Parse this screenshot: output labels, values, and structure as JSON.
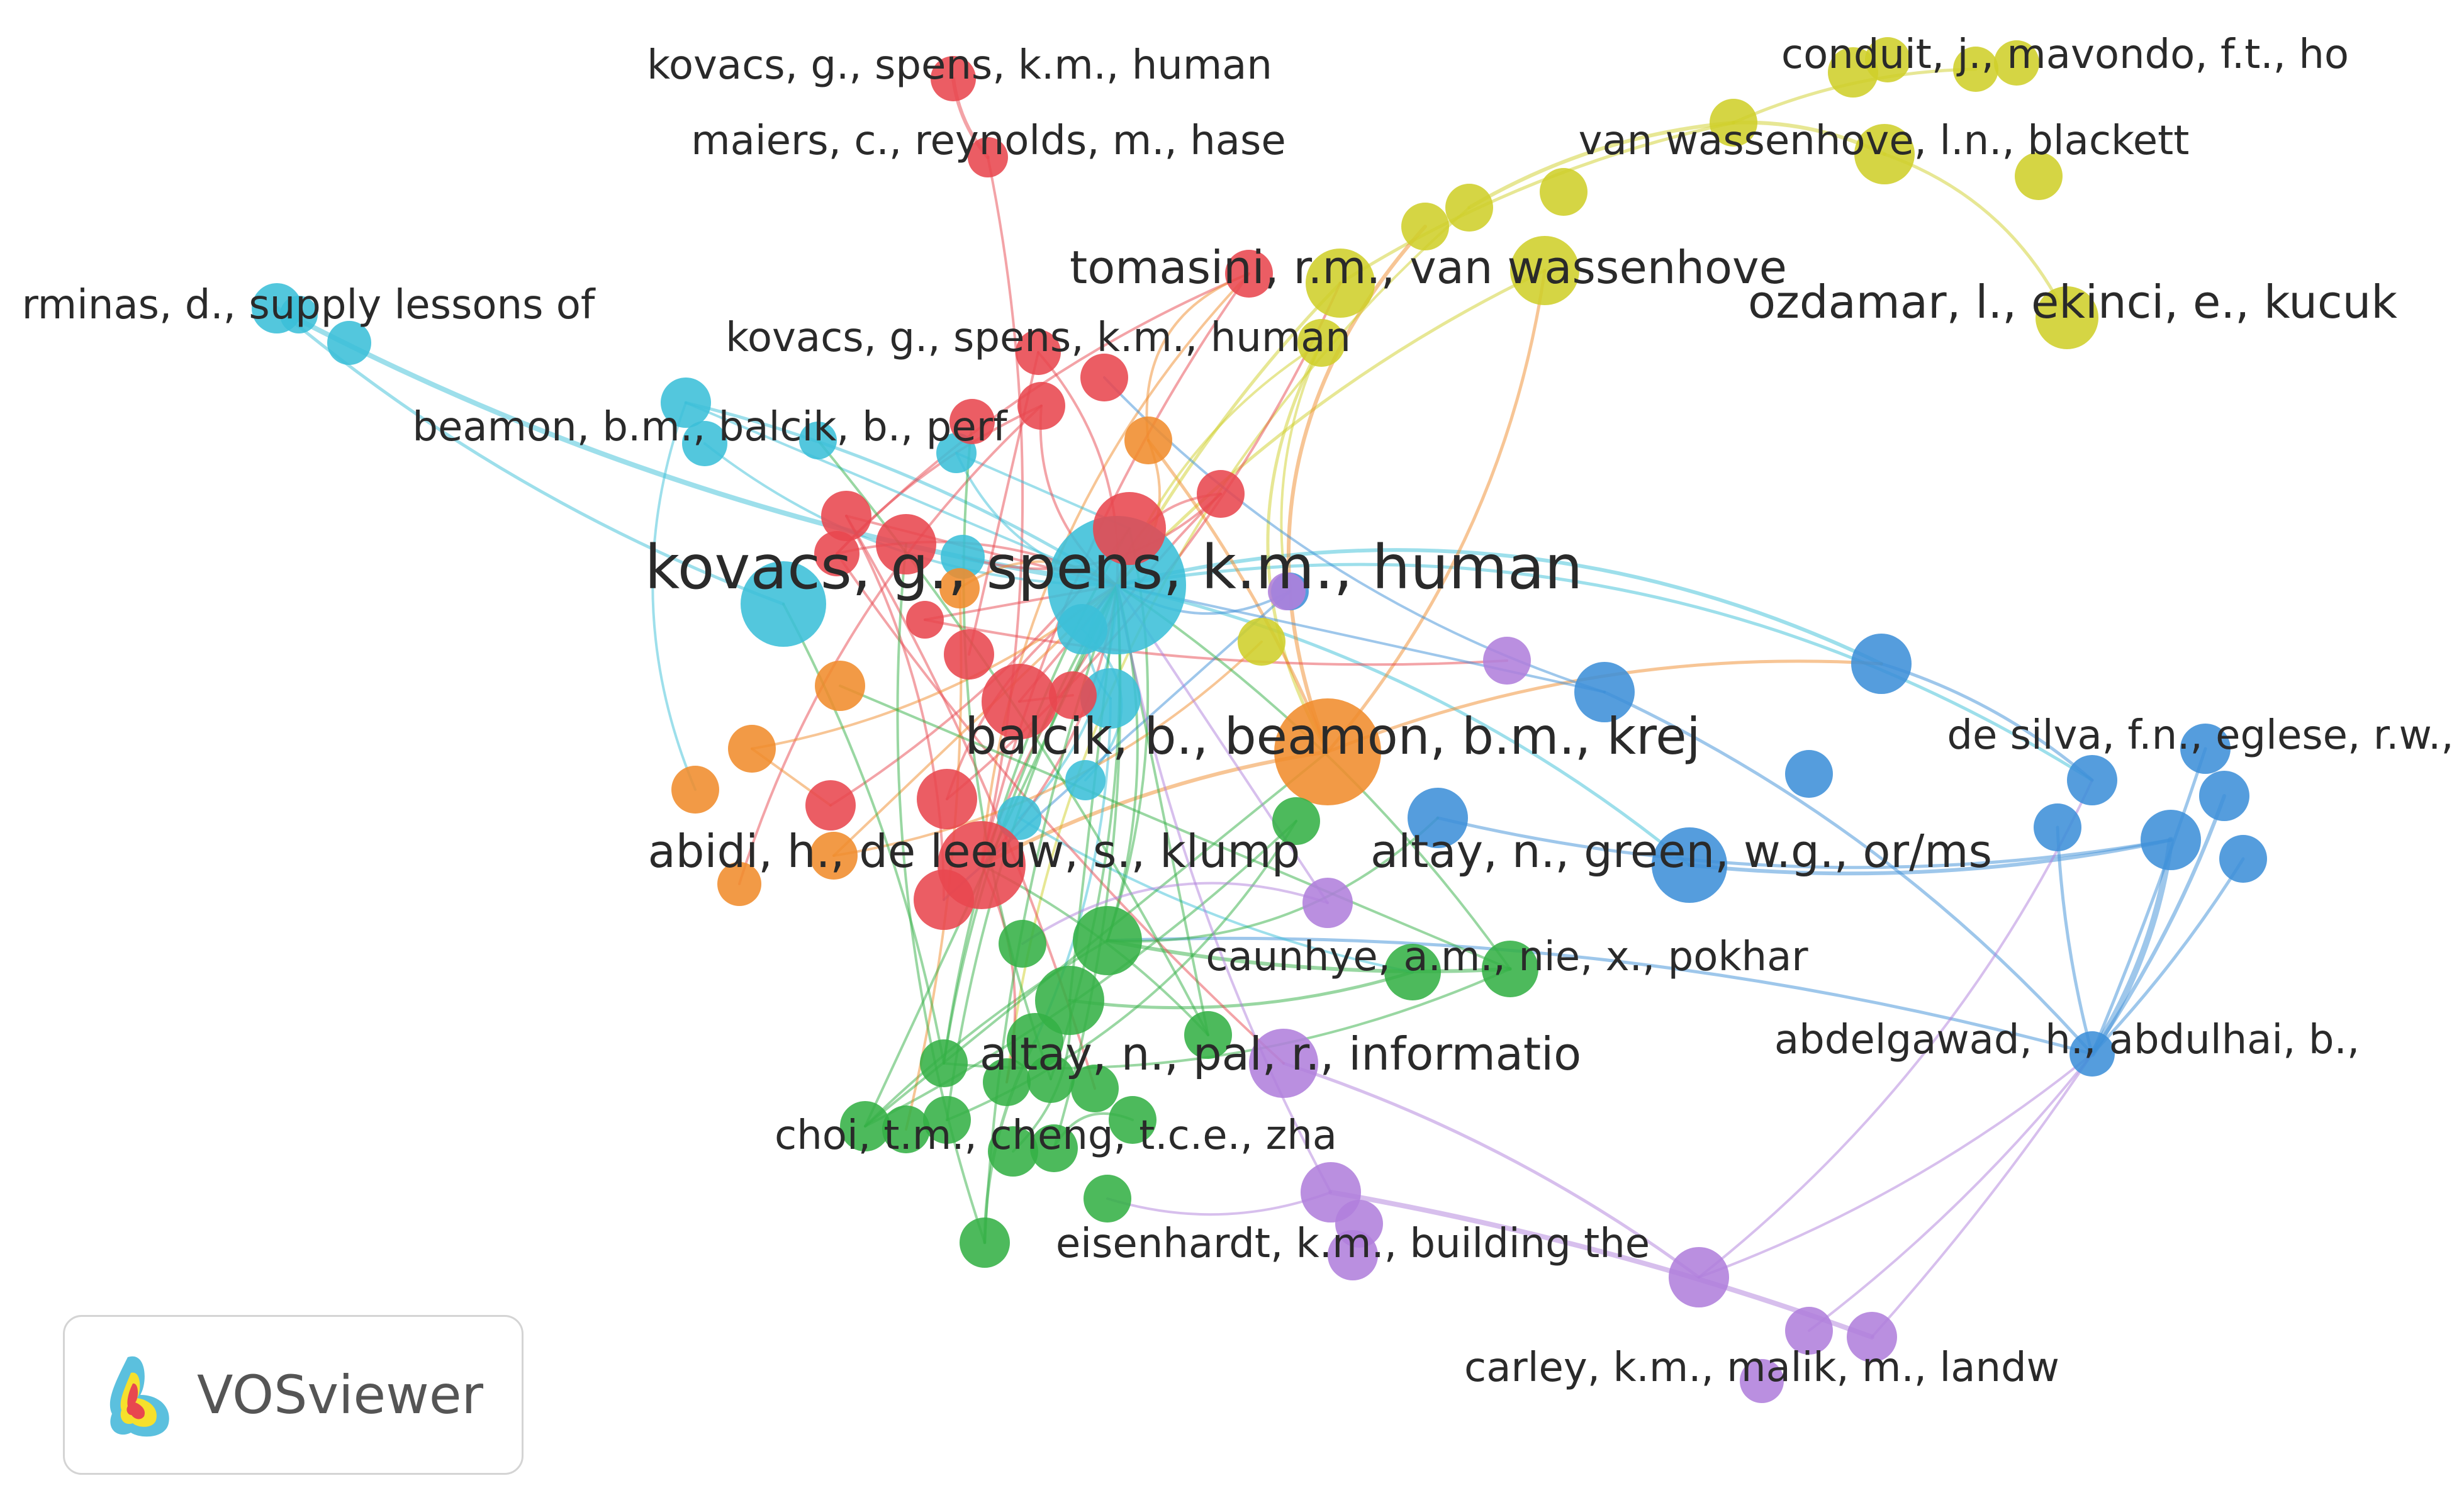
{
  "legend": {
    "app_name": "VOSviewer",
    "icon": "vosviewer-logo-icon"
  },
  "colors": {
    "red": "#e8474f",
    "cyan": "#3bbfd8",
    "yellow": "#cfcf2a",
    "orange": "#f08c2c",
    "blue": "#3d8fd8",
    "green": "#34b045",
    "purple": "#b07fdc"
  },
  "clusters": [
    {
      "id": "red",
      "color": "#e8474f"
    },
    {
      "id": "cyan",
      "color": "#3bbfd8"
    },
    {
      "id": "yellow",
      "color": "#cfcf2a"
    },
    {
      "id": "orange",
      "color": "#f08c2c"
    },
    {
      "id": "blue",
      "color": "#3d8fd8"
    },
    {
      "id": "green",
      "color": "#34b045"
    },
    {
      "id": "purple",
      "color": "#b07fdc"
    }
  ],
  "nodes": [
    {
      "label": "kovacs, g., spens, k.m., human",
      "cluster": "cyan",
      "weight": 10
    },
    {
      "label": "balcik, b., beamon, b.m., krej",
      "cluster": "orange",
      "weight": 8
    },
    {
      "label": "abidi, h., de leeuw, s., klump",
      "cluster": "red",
      "weight": 7
    },
    {
      "label": "altay, n., green, w.g., or/ms",
      "cluster": "blue",
      "weight": 7
    },
    {
      "label": "altay, n., pal, r., informatio",
      "cluster": "purple",
      "weight": 7
    },
    {
      "label": "tomasini, r.m., van wassenhove",
      "cluster": "yellow",
      "weight": 6
    },
    {
      "label": "ozdamar, l., ekinci, e., kucuk",
      "cluster": "yellow",
      "weight": 6
    },
    {
      "label": "van wassenhove, l.n., blackett",
      "cluster": "yellow",
      "weight": 5
    },
    {
      "label": "conduit, j., mavondo, f.t., ho",
      "cluster": "yellow",
      "weight": 5
    },
    {
      "label": "kovacs, g., spens, k.m., human",
      "cluster": "red",
      "weight": 4
    },
    {
      "label": "maiers, c., reynolds, m., hase",
      "cluster": "red",
      "weight": 4
    },
    {
      "label": "kovacs, g., spens, k.m., human",
      "cluster": "red",
      "weight": 4
    },
    {
      "label": "beamon, b.m., balcik, b., perf",
      "cluster": "cyan",
      "weight": 5
    },
    {
      "label": "rminas, d., supply lessons of",
      "cluster": "cyan",
      "weight": 4
    },
    {
      "label": "caunhye, a.m., nie, x., pokhar",
      "cluster": "green",
      "weight": 5
    },
    {
      "label": "choi, t.m., cheng, t.c.e., zha",
      "cluster": "green",
      "weight": 4
    },
    {
      "label": "eisenhardt, k.m., building the",
      "cluster": "purple",
      "weight": 4
    },
    {
      "label": "carley, k.m., malik, m., landw",
      "cluster": "purple",
      "weight": 4
    },
    {
      "label": "de silva, f.n., eglese, r.w.,",
      "cluster": "blue",
      "weight": 4
    },
    {
      "label": "abdelgawad, h., abdulhai, b.,",
      "cluster": "blue",
      "weight": 4
    }
  ]
}
